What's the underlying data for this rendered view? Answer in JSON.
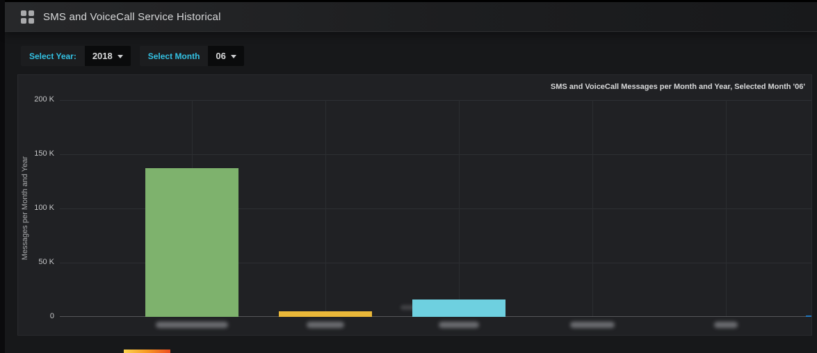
{
  "header": {
    "title": "SMS and VoiceCall Service Historical"
  },
  "controls": {
    "year": {
      "label": "Select Year:",
      "value": "2018"
    },
    "month": {
      "label": "Select Month",
      "value": "06"
    }
  },
  "colors": {
    "accent_cyan": "#33c1e3",
    "page_bg": "#17181a",
    "panel_bg": "#202124",
    "grid_line": "#2e3034",
    "axis_zero_line": "#56575a",
    "text_primary": "#d8d9da",
    "tick_text": "#c7c8ca"
  },
  "chart_data": {
    "type": "bar",
    "title": "SMS and VoiceCall Messages per Month and Year, Selected Month '06'",
    "xlabel": "",
    "ylabel": "Messages per Month and Year",
    "ylim": [
      0,
      200000
    ],
    "grid": true,
    "legend": "none",
    "yticks": [
      {
        "value": 0,
        "label": "0"
      },
      {
        "value": 50000,
        "label": "50 K"
      },
      {
        "value": 100000,
        "label": "100 K"
      },
      {
        "value": 150000,
        "label": "150 K"
      },
      {
        "value": 200000,
        "label": "200 K"
      }
    ],
    "x_labels_note": "category labels are blurred/redacted in the source screenshot",
    "categories": [
      {
        "label": "",
        "blurred": true,
        "blur_width": 104
      },
      {
        "label": "",
        "blurred": true,
        "blur_width": 54
      },
      {
        "label": "",
        "blurred": true,
        "blur_width": 58
      },
      {
        "label": "",
        "blurred": true,
        "blur_width": 64
      },
      {
        "label": "",
        "blurred": true,
        "blur_width": 34
      }
    ],
    "values": [
      137000,
      5000,
      16000,
      0,
      0
    ],
    "bar_colors": [
      "#7eb26d",
      "#eab839",
      "#6ed0e0",
      null,
      null
    ],
    "clipped_bar_right_edge": {
      "value": 1300,
      "color": "#1f78c1"
    }
  },
  "bottom_partial_panel": {
    "gradient_bar_colors": [
      "#fbd34f",
      "#f79a24",
      "#ec4e20"
    ]
  }
}
